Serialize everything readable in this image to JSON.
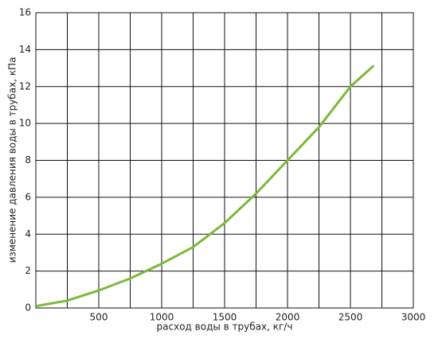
{
  "chart_data": {
    "type": "line",
    "x_label": "расход воды в трубах, кг/ч",
    "y_label": "изменение давления воды в трубах, кПа",
    "x": [
      0,
      250,
      500,
      750,
      1000,
      1250,
      1500,
      1750,
      2000,
      2250,
      2500,
      2680
    ],
    "series": [
      {
        "name": null,
        "color": "#7ab93a",
        "values": [
          0.1,
          0.4,
          0.95,
          1.6,
          2.4,
          3.3,
          4.6,
          6.2,
          8.0,
          9.8,
          12.0,
          13.1
        ]
      }
    ],
    "xlim": [
      0,
      3000
    ],
    "ylim": [
      0,
      16
    ],
    "xticks": [
      500,
      1000,
      1500,
      2000,
      2500,
      3000
    ],
    "xgrid": [
      250,
      500,
      750,
      1000,
      1250,
      1500,
      1750,
      2000,
      2250,
      2500,
      2750,
      3000
    ],
    "yticks": [
      0,
      2,
      4,
      6,
      8,
      10,
      12,
      14,
      16
    ],
    "grid": true
  }
}
